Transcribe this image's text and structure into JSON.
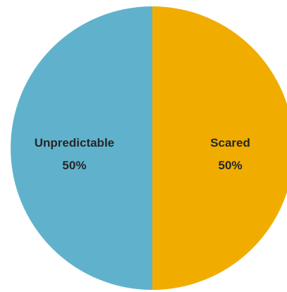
{
  "chart_data": {
    "type": "pie",
    "title": "",
    "slices": [
      {
        "label": "Scared",
        "value": 50,
        "display_value": "50%",
        "color": "#F0AD00"
      },
      {
        "label": "Unpredictable",
        "value": 50,
        "display_value": "50%",
        "color": "#60B2CC"
      }
    ],
    "start_angle_deg": 0,
    "direction": "clockwise",
    "legend": "none",
    "data_labels": "inside"
  }
}
